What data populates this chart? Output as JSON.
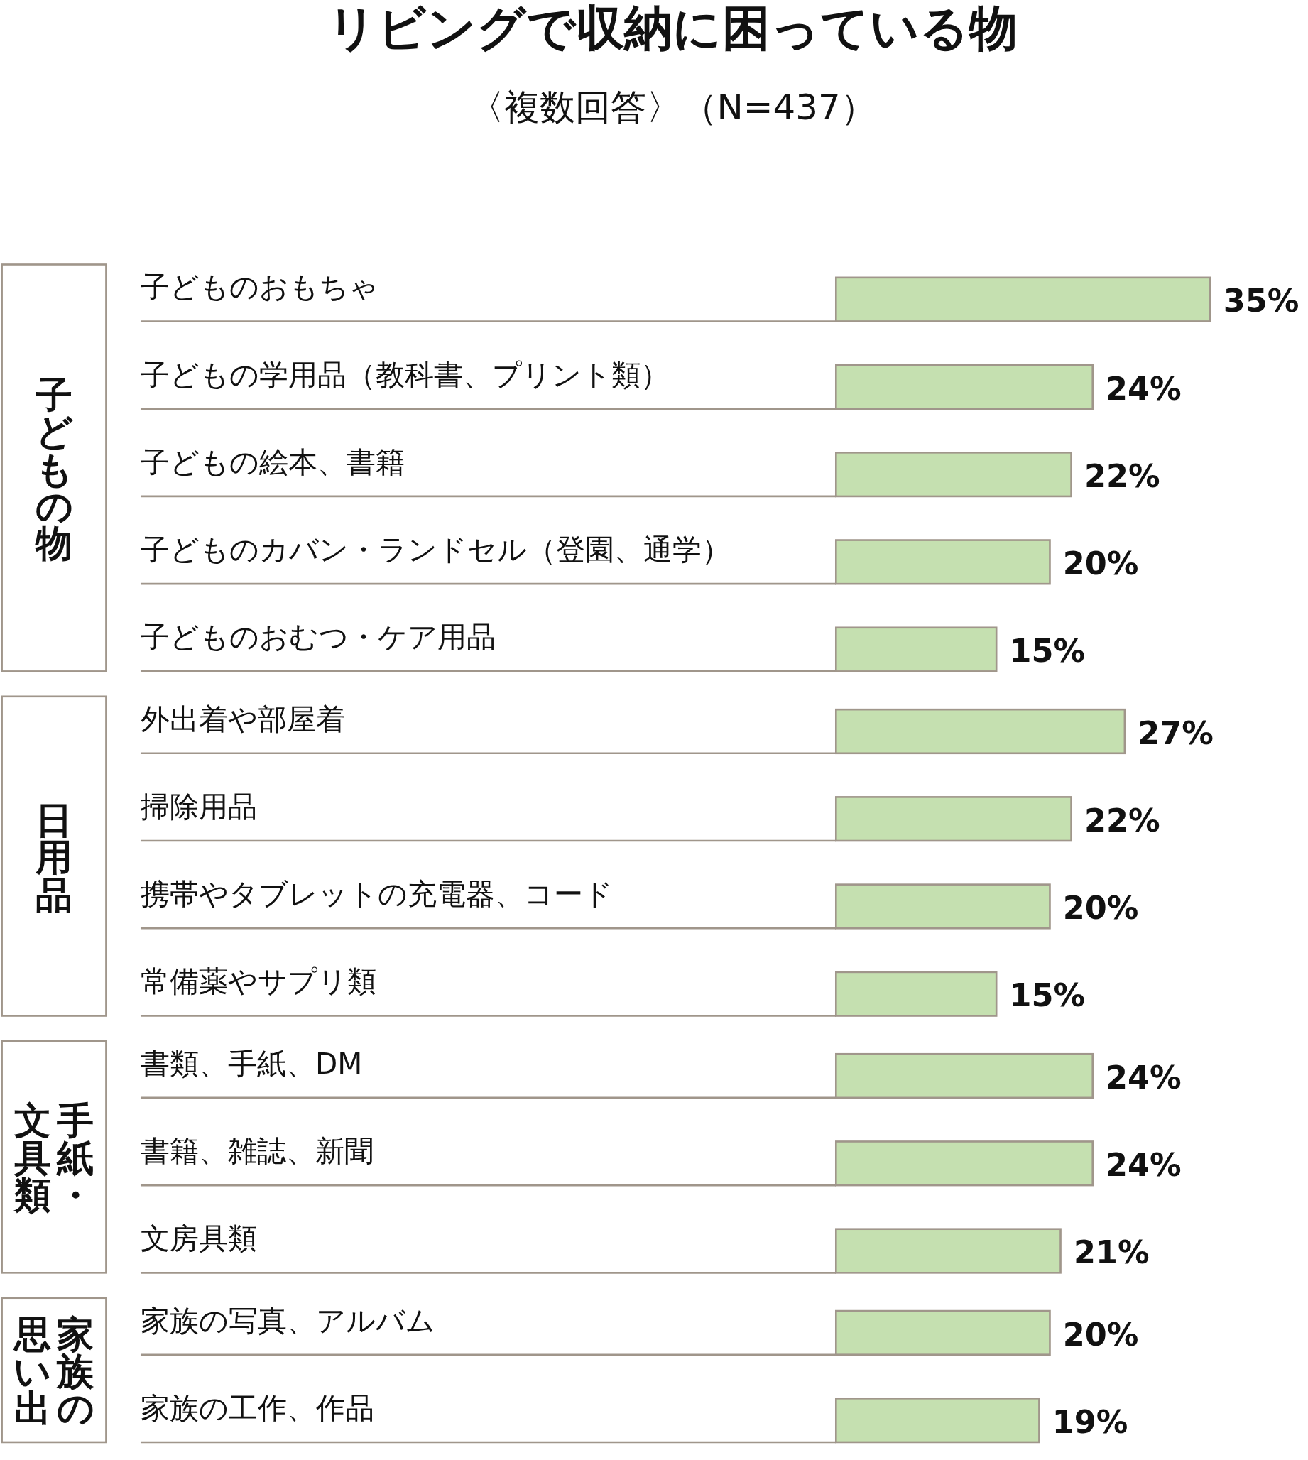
{
  "chart_data": [
    {
      "type": "bar",
      "orientation": "horizontal",
      "title": "リビングで収納に困っている物",
      "subtitle": "〈複数回答〉（N=437）",
      "ylabel": "子どもの物",
      "color": "#c5e0b0",
      "data_labels": true,
      "categories": [
        "子どものおもちゃ",
        "子どもの学用品（教科書、プリント類）",
        "子どもの絵本、書籍",
        "子どものカバン・ランドセル（登園、通学）",
        "子どものおむつ・ケア用品"
      ],
      "values": [
        35,
        24,
        22,
        20,
        15
      ],
      "value_labels": [
        "35%",
        "24%",
        "22%",
        "20%",
        "15%"
      ]
    },
    {
      "type": "bar",
      "orientation": "horizontal",
      "ylabel": "日用品",
      "color": "#c5e0b0",
      "data_labels": true,
      "categories": [
        "外出着や部屋着",
        "掃除用品",
        "携帯やタブレットの充電器、コード",
        "常備薬やサプリ類"
      ],
      "values": [
        27,
        22,
        20,
        15
      ],
      "value_labels": [
        "27%",
        "22%",
        "20%",
        "15%"
      ]
    },
    {
      "type": "bar",
      "orientation": "horizontal",
      "ylabel": "手紙・文具類",
      "color": "#c5e0b0",
      "data_labels": true,
      "categories": [
        "書類、手紙、DM",
        "書籍、雑誌、新聞",
        "文房具類"
      ],
      "values": [
        24,
        24,
        21
      ],
      "value_labels": [
        "24%",
        "24%",
        "21%"
      ]
    },
    {
      "type": "bar",
      "orientation": "horizontal",
      "ylabel": "家族の思い出",
      "color": "#c5e0b0",
      "data_labels": true,
      "categories": [
        "家族の写真、アルバム",
        "家族の工作、作品"
      ],
      "values": [
        20,
        19
      ],
      "value_labels": [
        "20%",
        "19%"
      ]
    }
  ]
}
